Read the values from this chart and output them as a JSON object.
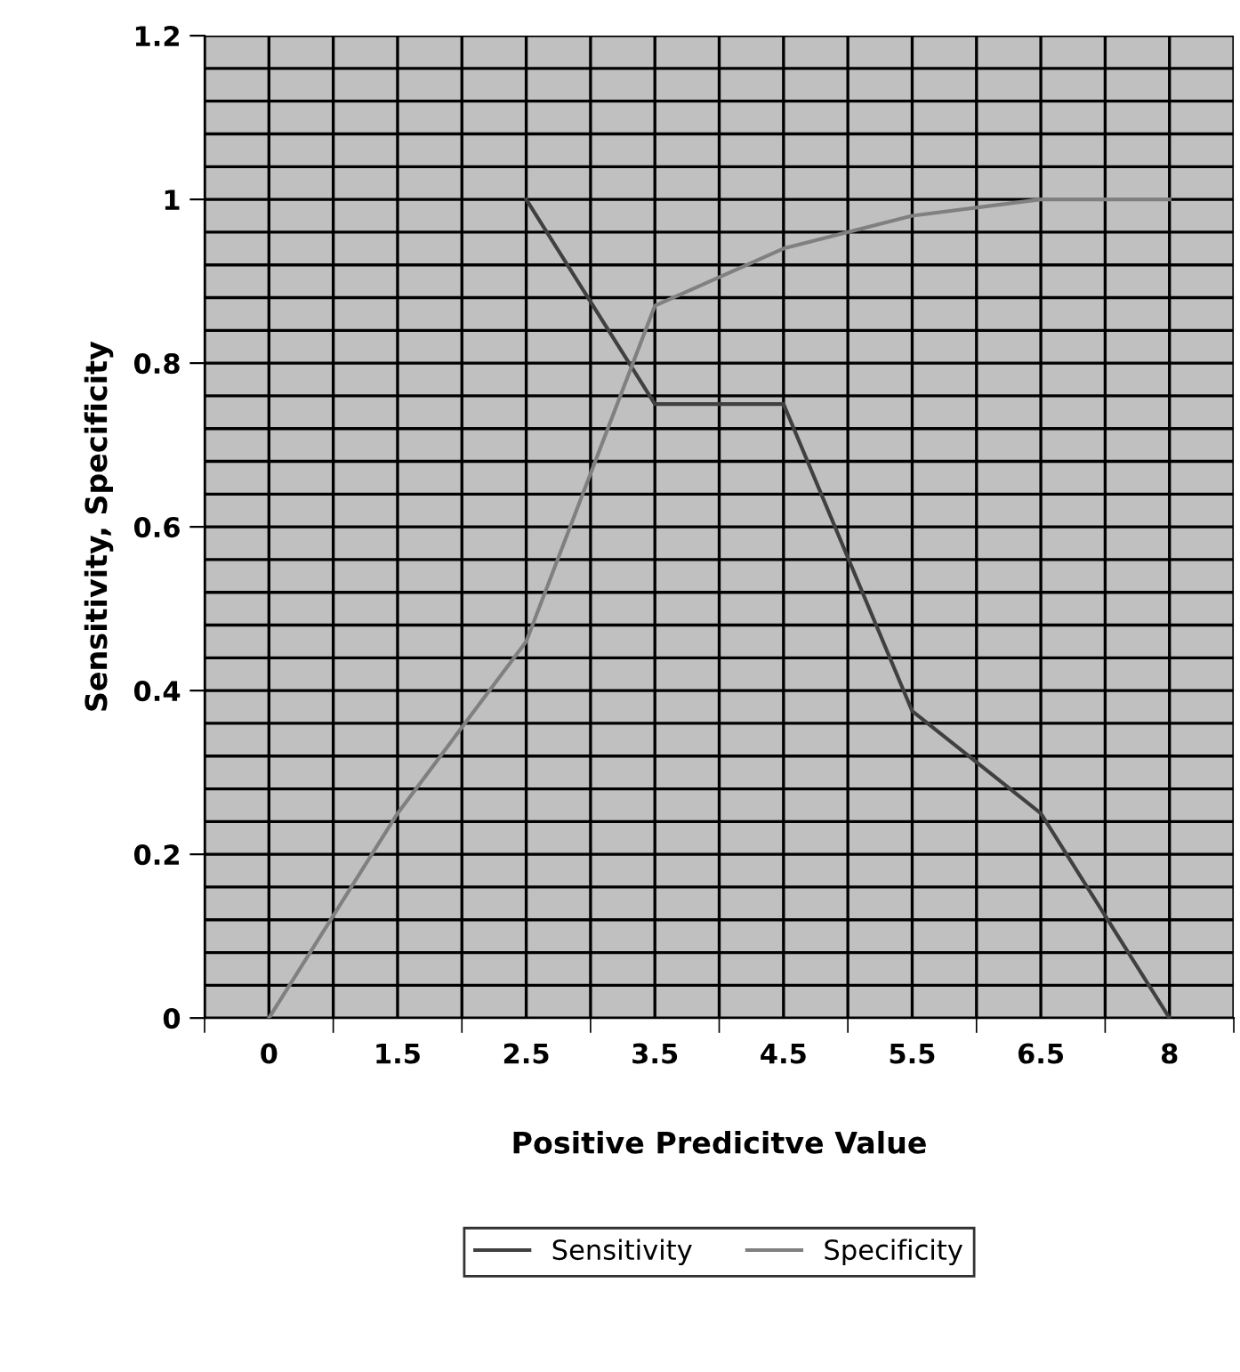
{
  "chart_data": {
    "type": "line",
    "xlabel": "Positive Predicitve Value",
    "ylabel": "Sensitivity, Specificity",
    "categories": [
      "0",
      "1.5",
      "2.5",
      "3.5",
      "4.5",
      "5.5",
      "6.5",
      "8"
    ],
    "series": [
      {
        "name": "Sensitivity",
        "color": "#404040",
        "values": [
          null,
          null,
          1.0,
          0.75,
          0.75,
          0.375,
          0.25,
          0
        ]
      },
      {
        "name": "Specificity",
        "color": "#808080",
        "values": [
          0,
          0.25,
          0.46,
          0.87,
          0.94,
          0.98,
          1.0,
          1.0
        ]
      }
    ],
    "ylim": [
      0,
      1.2
    ],
    "yticks": [
      0,
      0.2,
      0.4,
      0.6,
      0.8,
      1,
      1.2
    ],
    "grid": true,
    "legend": "bottom",
    "marker": "none",
    "line_style": "solid"
  }
}
